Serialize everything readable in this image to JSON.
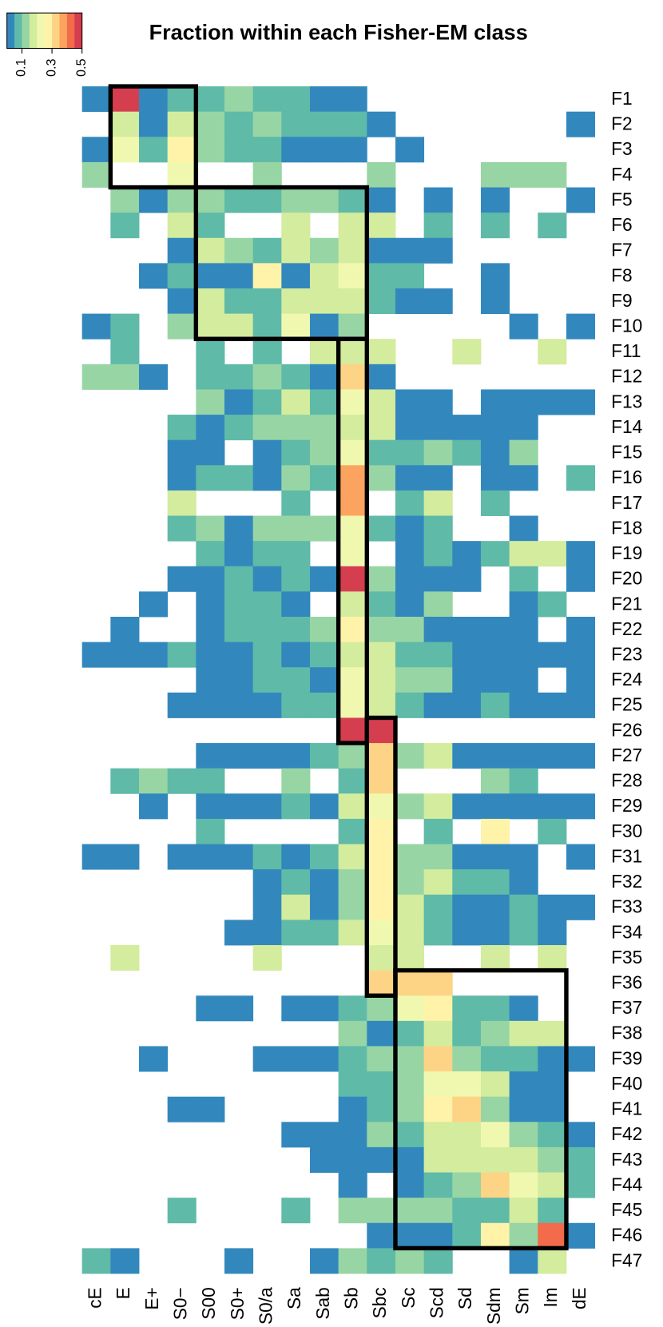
{
  "chart_data": {
    "type": "heatmap",
    "title": "Fraction within each Fisher-EM class",
    "categories": [
      "cE",
      "E",
      "E+",
      "S0−",
      "S00",
      "S0+",
      "S0/a",
      "Sa",
      "Sab",
      "Sb",
      "Sbc",
      "Sc",
      "Scd",
      "Sd",
      "Sdm",
      "Sm",
      "Im",
      "dE"
    ],
    "rows": [
      "F1",
      "F2",
      "F3",
      "F4",
      "F5",
      "F6",
      "F7",
      "F8",
      "F9",
      "F10",
      "F11",
      "F12",
      "F13",
      "F14",
      "F15",
      "F16",
      "F17",
      "F18",
      "F19",
      "F20",
      "F21",
      "F22",
      "F23",
      "F24",
      "F25",
      "F26",
      "F27",
      "F28",
      "F29",
      "F30",
      "F31",
      "F32",
      "F33",
      "F34",
      "F35",
      "F36",
      "F37",
      "F38",
      "F39",
      "F40",
      "F41",
      "F42",
      "F43",
      "F44",
      "F45",
      "F46",
      "F47"
    ],
    "colors": [
      "#3288bd",
      "#5fbaa8",
      "#98d5a4",
      "#d3ec9d",
      "#f0f8b0",
      "#fef3a9",
      "#fdd385",
      "#fca45f",
      "#f26b4a",
      "#d53e4f"
    ],
    "zlim": [
      0,
      0.5
    ],
    "zticks": [
      0.1,
      0.3,
      0.5
    ],
    "z": [
      [
        0.025,
        0.475,
        0.025,
        0.075,
        0.075,
        0.125,
        0.075,
        0.075,
        0.025,
        0.025,
        null,
        null,
        null,
        null,
        null,
        null,
        null,
        null
      ],
      [
        null,
        0.175,
        0.025,
        0.175,
        0.125,
        0.075,
        0.125,
        0.075,
        0.075,
        0.075,
        0.025,
        null,
        null,
        null,
        null,
        null,
        null,
        0.025
      ],
      [
        0.025,
        0.225,
        0.075,
        0.275,
        0.125,
        0.075,
        0.075,
        0.025,
        0.025,
        0.025,
        null,
        0.025,
        null,
        null,
        null,
        null,
        null,
        null
      ],
      [
        0.125,
        null,
        null,
        0.225,
        null,
        null,
        0.125,
        null,
        null,
        null,
        0.125,
        null,
        null,
        null,
        0.125,
        0.125,
        0.125,
        null
      ],
      [
        null,
        0.125,
        0.025,
        0.125,
        0.125,
        0.075,
        0.075,
        0.125,
        0.125,
        0.075,
        0.025,
        null,
        0.025,
        null,
        0.025,
        null,
        null,
        0.025
      ],
      [
        null,
        0.075,
        null,
        0.175,
        0.075,
        null,
        null,
        0.175,
        null,
        0.175,
        0.175,
        null,
        0.075,
        null,
        0.075,
        null,
        0.075,
        null
      ],
      [
        null,
        null,
        null,
        0.025,
        0.175,
        0.125,
        0.075,
        0.175,
        0.125,
        0.175,
        0.025,
        0.025,
        0.025,
        null,
        null,
        null,
        null,
        null
      ],
      [
        null,
        null,
        0.025,
        0.075,
        0.025,
        0.025,
        0.275,
        0.025,
        0.175,
        0.225,
        0.075,
        0.075,
        null,
        null,
        0.025,
        null,
        null,
        null
      ],
      [
        null,
        null,
        null,
        0.025,
        0.175,
        0.075,
        0.075,
        0.175,
        0.175,
        0.175,
        0.075,
        0.025,
        0.025,
        null,
        0.025,
        null,
        null,
        null
      ],
      [
        0.025,
        0.075,
        null,
        0.125,
        0.175,
        0.175,
        0.075,
        0.225,
        0.025,
        0.125,
        null,
        null,
        null,
        null,
        null,
        0.025,
        null,
        0.025
      ],
      [
        null,
        0.075,
        null,
        null,
        0.075,
        null,
        0.075,
        null,
        0.175,
        0.175,
        0.175,
        null,
        null,
        0.175,
        null,
        null,
        0.175,
        null
      ],
      [
        0.125,
        0.125,
        0.025,
        null,
        0.075,
        0.075,
        0.125,
        0.075,
        0.025,
        0.325,
        0.025,
        null,
        null,
        null,
        null,
        null,
        null,
        null
      ],
      [
        null,
        null,
        null,
        null,
        0.125,
        0.025,
        0.075,
        0.175,
        0.075,
        0.225,
        0.175,
        0.025,
        0.025,
        null,
        0.025,
        0.025,
        0.025,
        0.025
      ],
      [
        null,
        null,
        null,
        0.075,
        0.025,
        0.075,
        0.125,
        0.125,
        0.125,
        0.175,
        0.175,
        0.025,
        0.025,
        0.025,
        0.025,
        0.025,
        null,
        null
      ],
      [
        null,
        null,
        null,
        0.025,
        0.025,
        null,
        0.025,
        0.075,
        0.125,
        0.225,
        0.075,
        0.075,
        0.125,
        0.075,
        0.025,
        0.125,
        null,
        null
      ],
      [
        null,
        null,
        null,
        0.025,
        0.075,
        0.075,
        0.025,
        0.125,
        0.075,
        0.375,
        0.125,
        0.025,
        0.025,
        null,
        0.025,
        0.025,
        null,
        0.075
      ],
      [
        null,
        null,
        null,
        0.175,
        null,
        null,
        null,
        0.075,
        null,
        0.375,
        null,
        0.075,
        0.175,
        null,
        0.075,
        null,
        null,
        null
      ],
      [
        null,
        null,
        null,
        0.075,
        0.125,
        0.025,
        0.125,
        0.125,
        0.125,
        0.225,
        0.075,
        0.025,
        0.075,
        null,
        null,
        0.025,
        null,
        null
      ],
      [
        null,
        null,
        null,
        null,
        0.075,
        0.025,
        0.075,
        0.075,
        null,
        0.225,
        null,
        0.025,
        0.075,
        0.025,
        0.075,
        0.175,
        0.175,
        0.025
      ],
      [
        null,
        null,
        null,
        0.025,
        0.025,
        0.075,
        0.025,
        0.075,
        0.025,
        0.475,
        0.125,
        0.025,
        0.025,
        0.025,
        null,
        0.075,
        null,
        0.025
      ],
      [
        null,
        null,
        0.025,
        null,
        0.025,
        0.075,
        0.075,
        0.025,
        null,
        0.175,
        0.075,
        0.025,
        0.125,
        null,
        null,
        0.025,
        0.075,
        null
      ],
      [
        null,
        0.025,
        null,
        null,
        0.025,
        0.075,
        0.075,
        0.075,
        0.125,
        0.275,
        0.125,
        0.125,
        0.025,
        0.025,
        0.025,
        0.025,
        null,
        0.025
      ],
      [
        0.025,
        0.025,
        0.025,
        0.075,
        0.025,
        0.025,
        0.075,
        0.025,
        0.075,
        0.175,
        0.175,
        0.075,
        0.075,
        0.025,
        0.025,
        0.025,
        0.025,
        0.025
      ],
      [
        null,
        null,
        null,
        null,
        0.025,
        0.025,
        0.075,
        0.075,
        0.025,
        0.225,
        0.175,
        0.125,
        0.125,
        0.025,
        0.025,
        0.025,
        null,
        0.025
      ],
      [
        null,
        null,
        null,
        0.025,
        0.025,
        0.025,
        0.025,
        0.075,
        0.075,
        0.225,
        0.175,
        0.075,
        0.025,
        0.025,
        0.075,
        0.025,
        0.025,
        0.025
      ],
      [
        null,
        null,
        null,
        null,
        null,
        null,
        null,
        null,
        null,
        0.475,
        0.475,
        null,
        null,
        null,
        null,
        null,
        null,
        null
      ],
      [
        null,
        null,
        null,
        null,
        0.025,
        0.025,
        0.025,
        0.025,
        0.075,
        0.125,
        0.325,
        0.125,
        0.175,
        0.025,
        0.025,
        0.025,
        0.025,
        0.025
      ],
      [
        null,
        0.075,
        0.125,
        0.075,
        0.075,
        null,
        null,
        0.125,
        null,
        0.075,
        0.325,
        null,
        null,
        null,
        0.125,
        0.075,
        null,
        null
      ],
      [
        null,
        null,
        0.025,
        null,
        0.025,
        0.025,
        0.025,
        0.075,
        0.025,
        0.175,
        0.225,
        0.125,
        0.175,
        0.025,
        0.025,
        0.025,
        0.025,
        0.025
      ],
      [
        null,
        null,
        null,
        null,
        0.075,
        null,
        null,
        null,
        null,
        0.075,
        0.275,
        null,
        0.075,
        null,
        0.275,
        null,
        0.075,
        null
      ],
      [
        0.025,
        0.025,
        null,
        0.025,
        0.025,
        0.025,
        0.075,
        0.025,
        0.075,
        0.175,
        0.275,
        0.125,
        0.125,
        0.025,
        0.025,
        0.025,
        null,
        0.025
      ],
      [
        null,
        null,
        null,
        null,
        null,
        null,
        0.025,
        0.075,
        0.025,
        0.125,
        0.275,
        0.125,
        0.175,
        0.075,
        0.075,
        0.025,
        null,
        null
      ],
      [
        null,
        null,
        null,
        null,
        null,
        null,
        0.025,
        0.175,
        0.025,
        0.125,
        0.275,
        0.175,
        0.075,
        0.025,
        0.025,
        0.075,
        0.025,
        0.025
      ],
      [
        null,
        null,
        null,
        null,
        null,
        0.025,
        0.025,
        0.075,
        0.075,
        0.175,
        0.225,
        0.175,
        0.075,
        0.025,
        0.025,
        0.075,
        0.025,
        null
      ],
      [
        null,
        0.175,
        null,
        null,
        null,
        null,
        0.175,
        null,
        null,
        null,
        0.175,
        0.175,
        null,
        null,
        0.175,
        null,
        0.175,
        null
      ],
      [
        null,
        null,
        null,
        null,
        null,
        null,
        null,
        null,
        null,
        null,
        0.325,
        0.325,
        0.325,
        null,
        null,
        null,
        null,
        null
      ],
      [
        null,
        null,
        null,
        null,
        0.025,
        0.025,
        null,
        0.025,
        0.025,
        0.075,
        0.125,
        0.225,
        0.275,
        0.075,
        0.075,
        0.025,
        null,
        null
      ],
      [
        null,
        null,
        null,
        null,
        null,
        null,
        null,
        null,
        null,
        0.125,
        0.025,
        0.075,
        0.175,
        0.075,
        0.125,
        0.175,
        0.175,
        null
      ],
      [
        null,
        null,
        0.025,
        null,
        null,
        null,
        0.025,
        0.025,
        0.025,
        0.075,
        0.125,
        0.125,
        0.325,
        0.125,
        0.075,
        0.075,
        0.025,
        0.025
      ],
      [
        null,
        null,
        null,
        null,
        null,
        null,
        null,
        null,
        null,
        0.075,
        0.075,
        0.125,
        0.225,
        0.225,
        0.175,
        0.025,
        0.025,
        null
      ],
      [
        null,
        null,
        null,
        0.025,
        0.025,
        null,
        null,
        null,
        null,
        0.025,
        0.075,
        0.125,
        0.275,
        0.325,
        0.125,
        0.025,
        0.025,
        null
      ],
      [
        null,
        null,
        null,
        null,
        null,
        null,
        null,
        0.025,
        0.025,
        0.025,
        0.125,
        0.075,
        0.175,
        0.175,
        0.225,
        0.125,
        0.075,
        0.025
      ],
      [
        null,
        null,
        null,
        null,
        null,
        null,
        null,
        null,
        0.025,
        0.025,
        0.025,
        0.025,
        0.175,
        0.175,
        0.175,
        0.175,
        0.125,
        0.075
      ],
      [
        null,
        null,
        null,
        null,
        null,
        null,
        null,
        null,
        null,
        0.025,
        null,
        0.025,
        0.075,
        0.125,
        0.325,
        0.225,
        0.175,
        0.075
      ],
      [
        null,
        null,
        null,
        0.075,
        null,
        null,
        null,
        0.075,
        null,
        0.125,
        0.125,
        0.125,
        0.125,
        0.075,
        0.075,
        0.175,
        0.075,
        null
      ],
      [
        null,
        null,
        null,
        null,
        null,
        null,
        null,
        null,
        null,
        null,
        0.025,
        0.025,
        0.025,
        0.075,
        0.275,
        0.125,
        0.425,
        0.025
      ],
      [
        0.075,
        0.025,
        null,
        null,
        null,
        0.025,
        null,
        null,
        0.025,
        0.125,
        0.075,
        0.125,
        0.075,
        null,
        null,
        0.025,
        0.175,
        null
      ]
    ]
  }
}
